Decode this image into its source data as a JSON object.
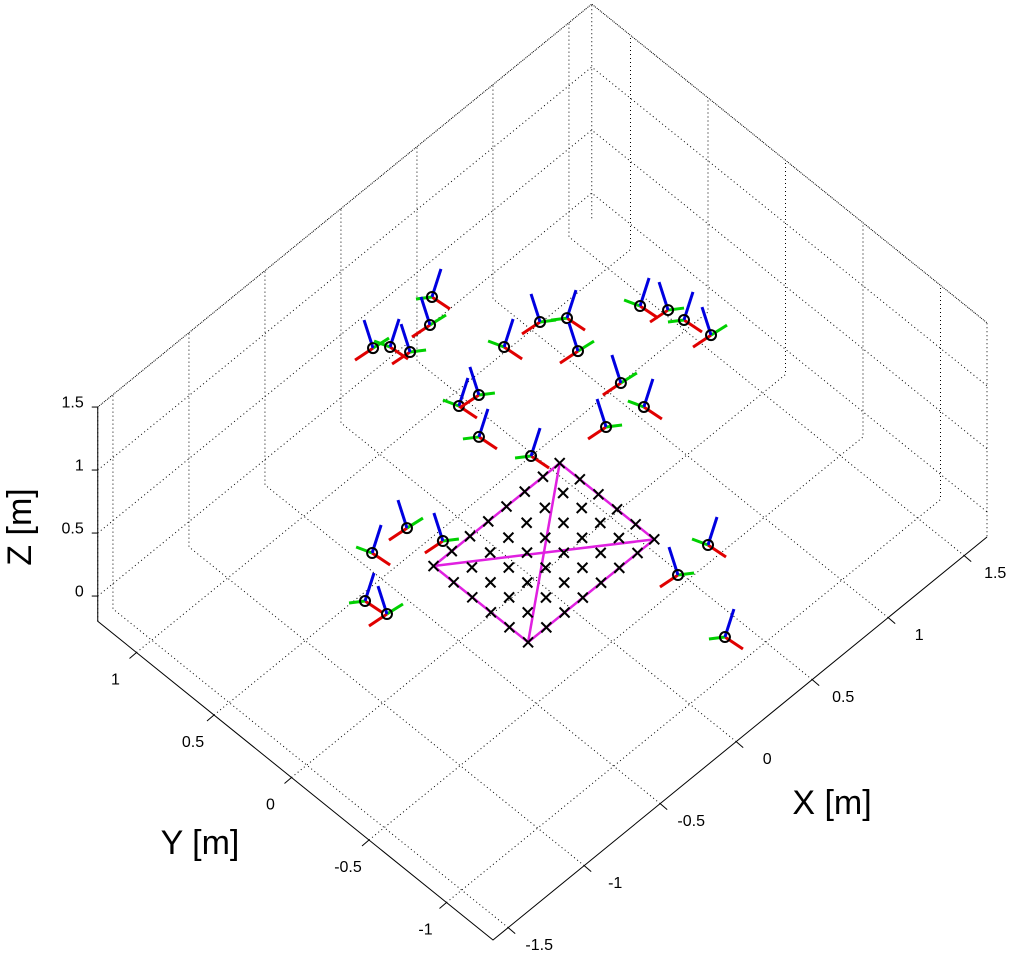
{
  "chart_data": {
    "type": "scatter3d",
    "xlabel": "X [m]",
    "ylabel": "Y [m]",
    "zlabel": "Z [m]",
    "xlim": [
      -1.6,
      1.65
    ],
    "ylim": [
      -1.3,
      1.25
    ],
    "zlim": [
      -0.2,
      1.5
    ],
    "xticks": [
      -1.5,
      -1,
      -0.5,
      0,
      0.5,
      1,
      1.5
    ],
    "yticks": [
      -1,
      -0.5,
      0,
      0.5,
      1
    ],
    "zticks": [
      0,
      0.5,
      1,
      1.5
    ],
    "grid": true,
    "color": "#000000",
    "board_color": "#e020e0",
    "x": [
      -0.205,
      -0.145,
      -0.1,
      0.195,
      0.075,
      0.228,
      0.447,
      0.551,
      0.453,
      0.839,
      0.914,
      0.926,
      0.953,
      -0.159,
      -0.049,
      -0.219,
      0.464,
      0.442,
      0.237,
      -0.126,
      -0.824,
      -1.039,
      -0.759,
      -1.257,
      -1.238,
      0.092,
      -0.128,
      -0.226
    ],
    "y": [
      0.842,
      0.791,
      0.706,
      0.854,
      0.749,
      0.421,
      0.404,
      0.332,
      0.165,
      0.143,
      0.036,
      -0.055,
      -0.203,
      0.333,
      0.312,
      0.145,
      -0.101,
      -0.271,
      -0.228,
      -0.1,
      0.016,
      0.03,
      -0.152,
      -0.138,
      -0.261,
      -1.028,
      -1.05,
      -1.449
    ],
    "z": [
      1,
      1,
      1,
      1,
      1,
      1,
      1,
      1,
      1,
      1,
      1,
      1,
      1,
      1,
      1,
      1,
      1,
      1,
      1,
      1,
      1,
      1,
      1,
      1,
      1,
      1,
      1,
      1
    ],
    "board_x": [
      -0.38,
      -0.26,
      -0.14,
      -0.02,
      0.1,
      0.22,
      0.34,
      0.45
    ],
    "board_y": [
      -0.33,
      -0.21,
      -0.09,
      0.03,
      0.15,
      0.28
    ],
    "board_z": 0
  }
}
